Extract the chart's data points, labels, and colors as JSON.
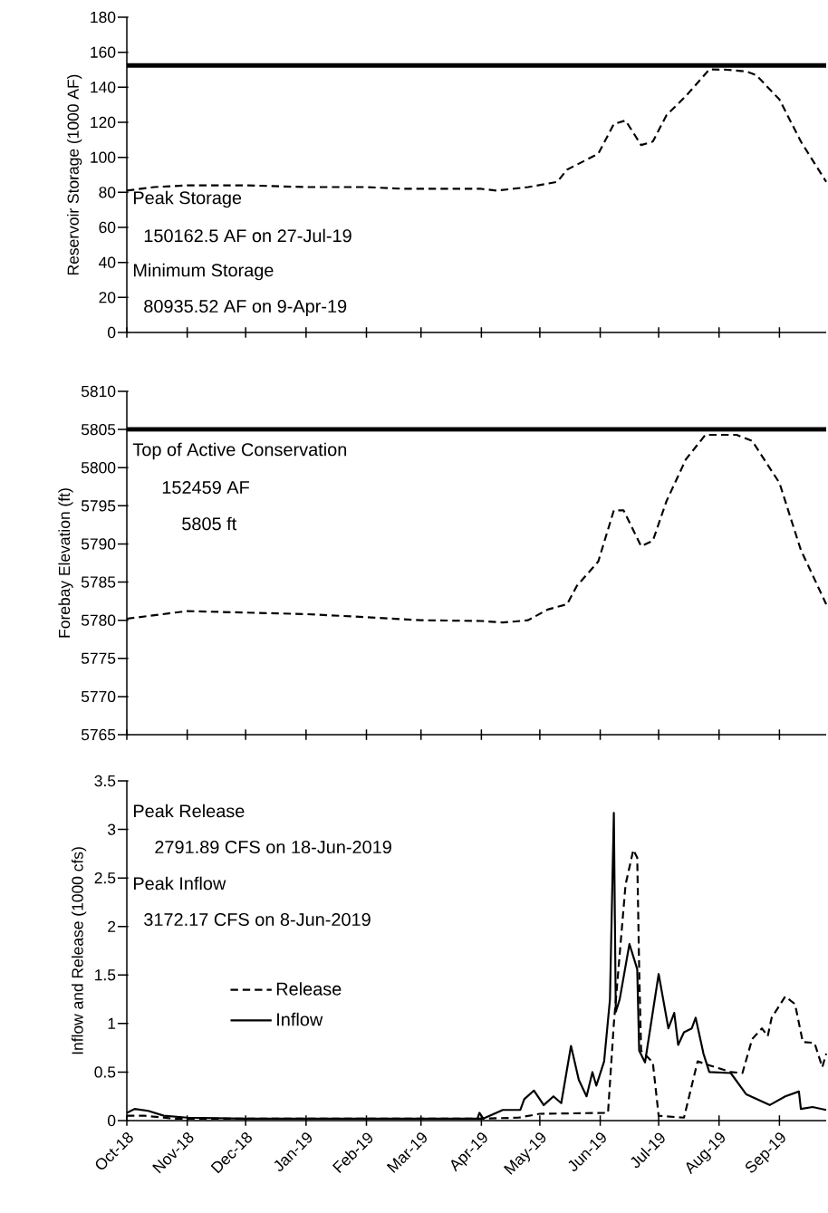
{
  "chart_data": [
    {
      "type": "line",
      "ylabel": "Reservoir Storage (1000 AF)",
      "xlim": [
        "2018-10-01",
        "2019-09-25"
      ],
      "ylim": [
        0,
        180
      ],
      "yticks": [
        0,
        20,
        40,
        60,
        80,
        100,
        120,
        140,
        160,
        180
      ],
      "xticks": [
        {
          "value": "2018-10-01",
          "label": null
        },
        {
          "value": "2018-11-01",
          "label": null
        },
        {
          "value": "2018-12-01",
          "label": null
        },
        {
          "value": "2019-01-01",
          "label": null
        },
        {
          "value": "2019-02-01",
          "label": null
        },
        {
          "value": "2019-03-01",
          "label": null
        },
        {
          "value": "2019-04-01",
          "label": null
        },
        {
          "value": "2019-05-01",
          "label": null
        },
        {
          "value": "2019-06-01",
          "label": null
        },
        {
          "value": "2019-07-01",
          "label": null
        },
        {
          "value": "2019-08-01",
          "label": null
        },
        {
          "value": "2019-09-01",
          "label": null
        }
      ],
      "tick_labels": "y",
      "series": [
        {
          "color": "#000000",
          "line_style": "dashed",
          "x": [
            "2018-10-01",
            "2018-10-15",
            "2018-11-01",
            "2018-12-01",
            "2019-01-01",
            "2019-02-01",
            "2019-02-20",
            "2019-03-01",
            "2019-04-01",
            "2019-04-09",
            "2019-04-25",
            "2019-05-10",
            "2019-05-15",
            "2019-05-31",
            "2019-06-08",
            "2019-06-14",
            "2019-06-22",
            "2019-06-28",
            "2019-07-05",
            "2019-07-15",
            "2019-07-27",
            "2019-08-05",
            "2019-08-15",
            "2019-08-20",
            "2019-09-01",
            "2019-09-12",
            "2019-09-25"
          ],
          "values": [
            81,
            83,
            84,
            84,
            83,
            83,
            82,
            82,
            82,
            81,
            83,
            86,
            93,
            102,
            119,
            121,
            107,
            109,
            124,
            135,
            150.2,
            150,
            149,
            147,
            133,
            109,
            86
          ]
        }
      ],
      "ref_lines": [
        {
          "axis": "y",
          "value": 152.459,
          "color": "#000000"
        }
      ],
      "annotations": [
        "Peak Storage",
        "150162.5 AF on 27-Jul-19",
        "Minimum Storage",
        "80935.52 AF on 9-Apr-19"
      ]
    },
    {
      "type": "line",
      "ylabel": "Forebay Elevation (ft)",
      "xlim": [
        "2018-10-01",
        "2019-09-25"
      ],
      "ylim": [
        5765,
        5810
      ],
      "yticks": [
        5765,
        5770,
        5775,
        5780,
        5785,
        5790,
        5795,
        5800,
        5805,
        5810
      ],
      "xticks": [
        {
          "value": "2018-10-01",
          "label": null
        },
        {
          "value": "2018-11-01",
          "label": null
        },
        {
          "value": "2018-12-01",
          "label": null
        },
        {
          "value": "2019-01-01",
          "label": null
        },
        {
          "value": "2019-02-01",
          "label": null
        },
        {
          "value": "2019-03-01",
          "label": null
        },
        {
          "value": "2019-04-01",
          "label": null
        },
        {
          "value": "2019-05-01",
          "label": null
        },
        {
          "value": "2019-06-01",
          "label": null
        },
        {
          "value": "2019-07-01",
          "label": null
        },
        {
          "value": "2019-08-01",
          "label": null
        },
        {
          "value": "2019-09-01",
          "label": null
        }
      ],
      "tick_labels": "y",
      "series": [
        {
          "color": "#000000",
          "line_style": "dashed",
          "x": [
            "2018-10-01",
            "2018-11-01",
            "2018-12-01",
            "2019-01-01",
            "2019-02-01",
            "2019-03-01",
            "2019-04-01",
            "2019-04-12",
            "2019-04-25",
            "2019-05-05",
            "2019-05-15",
            "2019-05-20",
            "2019-05-31",
            "2019-06-08",
            "2019-06-13",
            "2019-06-22",
            "2019-06-28",
            "2019-07-05",
            "2019-07-15",
            "2019-07-25",
            "2019-08-10",
            "2019-08-18",
            "2019-09-01",
            "2019-09-12",
            "2019-09-25"
          ],
          "values": [
            5780.2,
            5781.2,
            5781,
            5780.8,
            5780.4,
            5780,
            5779.9,
            5779.7,
            5780,
            5781.4,
            5782.1,
            5784.5,
            5787.7,
            5794.4,
            5794.4,
            5789.7,
            5790.4,
            5795.6,
            5801.1,
            5804.3,
            5804.3,
            5803.5,
            5798,
            5789.2,
            5782.1
          ]
        }
      ],
      "ref_lines": [
        {
          "axis": "y",
          "value": 5805,
          "color": "#000000"
        }
      ],
      "annotations": [
        "Top of Active Conservation",
        "152459 AF",
        "5805 ft"
      ]
    },
    {
      "type": "line",
      "ylabel": "Inflow and Release (1000 cfs)",
      "xlim": [
        "2018-10-01",
        "2019-09-25"
      ],
      "ylim": [
        0,
        3.5
      ],
      "yticks": [
        0,
        0.5,
        1,
        1.5,
        2,
        2.5,
        3,
        3.5
      ],
      "xticks": [
        {
          "value": "2018-10-01",
          "label": "Oct-18"
        },
        {
          "value": "2018-11-01",
          "label": "Nov-18"
        },
        {
          "value": "2018-12-01",
          "label": "Dec-18"
        },
        {
          "value": "2019-01-01",
          "label": "Jan-19"
        },
        {
          "value": "2019-02-01",
          "label": "Feb-19"
        },
        {
          "value": "2019-03-01",
          "label": "Mar-19"
        },
        {
          "value": "2019-04-01",
          "label": "Apr-19"
        },
        {
          "value": "2019-05-01",
          "label": "May-19"
        },
        {
          "value": "2019-06-01",
          "label": "Jun-19"
        },
        {
          "value": "2019-07-01",
          "label": "Jul-19"
        },
        {
          "value": "2019-08-01",
          "label": "Aug-19"
        },
        {
          "value": "2019-09-01",
          "label": "Sep-19"
        }
      ],
      "legend": "left",
      "series": [
        {
          "name": "Release",
          "color": "#000000",
          "line_style": "dashed",
          "x": [
            "2018-10-01",
            "2018-10-10",
            "2018-10-25",
            "2018-12-01",
            "2019-02-01",
            "2019-04-01",
            "2019-04-20",
            "2019-05-01",
            "2019-06-05",
            "2019-06-08",
            "2019-06-14",
            "2019-06-18",
            "2019-06-20",
            "2019-06-21",
            "2019-06-22",
            "2019-06-28",
            "2019-07-01",
            "2019-07-14",
            "2019-07-21",
            "2019-07-27",
            "2019-08-07",
            "2019-08-13",
            "2019-08-18",
            "2019-08-23",
            "2019-08-26",
            "2019-08-28",
            "2019-09-04",
            "2019-09-09",
            "2019-09-13",
            "2019-09-19",
            "2019-09-23",
            "2019-09-25"
          ],
          "values": [
            0.05,
            0.05,
            0.02,
            0.02,
            0.02,
            0.02,
            0.03,
            0.07,
            0.08,
            1.0,
            2.43,
            2.79,
            2.71,
            1.56,
            0.72,
            0.6,
            0.05,
            0.03,
            0.61,
            0.57,
            0.5,
            0.49,
            0.84,
            0.95,
            0.87,
            1.06,
            1.28,
            1.2,
            0.81,
            0.8,
            0.55,
            0.69
          ]
        },
        {
          "name": "Inflow",
          "color": "#000000",
          "line_style": "solid",
          "x": [
            "2018-10-01",
            "2018-10-05",
            "2018-10-12",
            "2018-10-20",
            "2018-11-01",
            "2018-12-01",
            "2019-01-01",
            "2019-02-01",
            "2019-03-01",
            "2019-03-30",
            "2019-03-31",
            "2019-04-02",
            "2019-04-12",
            "2019-04-21",
            "2019-04-23",
            "2019-04-28",
            "2019-05-03",
            "2019-05-08",
            "2019-05-12",
            "2019-05-17",
            "2019-05-21",
            "2019-05-25",
            "2019-05-28",
            "2019-05-30",
            "2019-06-03",
            "2019-06-06",
            "2019-06-08",
            "2019-06-09",
            "2019-06-11",
            "2019-06-16",
            "2019-06-20",
            "2019-06-21",
            "2019-06-24",
            "2019-07-01",
            "2019-07-06",
            "2019-07-09",
            "2019-07-11",
            "2019-07-14",
            "2019-07-18",
            "2019-07-20",
            "2019-07-24",
            "2019-07-27",
            "2019-08-07",
            "2019-08-15",
            "2019-08-27",
            "2019-09-04",
            "2019-09-11",
            "2019-09-12",
            "2019-09-18",
            "2019-09-25"
          ],
          "values": [
            0.08,
            0.12,
            0.1,
            0.05,
            0.03,
            0.02,
            0.02,
            0.02,
            0.02,
            0.02,
            0.08,
            0.02,
            0.11,
            0.11,
            0.22,
            0.31,
            0.16,
            0.25,
            0.18,
            0.77,
            0.42,
            0.25,
            0.5,
            0.36,
            0.61,
            1.25,
            3.17,
            1.12,
            1.25,
            1.82,
            1.56,
            0.72,
            0.6,
            1.51,
            0.95,
            1.11,
            0.78,
            0.91,
            0.95,
            1.06,
            0.69,
            0.5,
            0.49,
            0.27,
            0.16,
            0.25,
            0.3,
            0.12,
            0.14,
            0.11
          ]
        }
      ],
      "annotations": [
        "Peak Release",
        "2791.89 CFS on 18-Jun-2019",
        "Peak Inflow",
        "3172.17 CFS on 8-Jun-2019"
      ]
    }
  ]
}
